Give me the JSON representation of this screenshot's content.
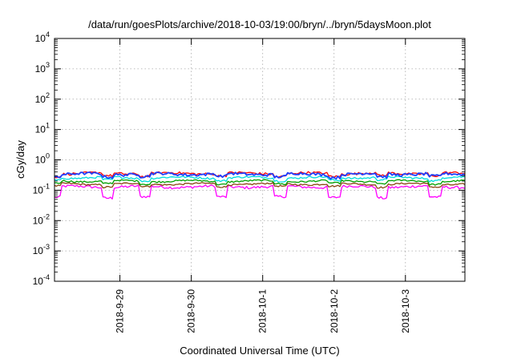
{
  "chart_data": {
    "type": "line",
    "title": "/data/run/goesPlots/archive/2018-10-03/19:00/bryn/../bryn/5daysMoon.plot",
    "xlabel": "Coordinated Universal Time (UTC)",
    "ylabel": "cGy/day",
    "yscale": "log",
    "ylim": [
      0.0001,
      10000
    ],
    "xlim": [
      "2018-09-28 02:00",
      "2018-10-03 20:00"
    ],
    "y_ticks": [
      {
        "base": "10",
        "exp": "-4"
      },
      {
        "base": "10",
        "exp": "-3"
      },
      {
        "base": "10",
        "exp": "-2"
      },
      {
        "base": "10",
        "exp": "-1"
      },
      {
        "base": "10",
        "exp": "0"
      },
      {
        "base": "10",
        "exp": "1"
      },
      {
        "base": "10",
        "exp": "2"
      },
      {
        "base": "10",
        "exp": "3"
      },
      {
        "base": "10",
        "exp": "4"
      }
    ],
    "x_ticks": [
      {
        "label": "2018-9-29",
        "at": "2018-09-29 00:00"
      },
      {
        "label": "2018-9-30",
        "at": "2018-09-30 00:00"
      },
      {
        "label": "2018-10-1",
        "at": "2018-10-01 00:00"
      },
      {
        "label": "2018-10-2",
        "at": "2018-10-02 00:00"
      },
      {
        "label": "2018-10-3",
        "at": "2018-10-03 00:00"
      }
    ],
    "grid": true,
    "legend": "none",
    "series": [
      {
        "color": "#ff00ff",
        "base": 0.13,
        "jitter": 0.1,
        "dips": true
      },
      {
        "color": "#8b4513",
        "base": 0.16,
        "jitter": 0.06,
        "dips": false
      },
      {
        "color": "#00a000",
        "base": 0.2,
        "jitter": 0.06,
        "dips": false
      },
      {
        "color": "#00dddd",
        "base": 0.26,
        "jitter": 0.07,
        "dips": false
      },
      {
        "color": "#ff0000",
        "base": 0.36,
        "jitter": 0.09,
        "dips": false
      },
      {
        "color": "#1f3fff",
        "base": 0.34,
        "jitter": 0.1,
        "dips": false
      }
    ],
    "dip_dates": [
      "2018-09-28 02:30",
      "2018-09-28 20:00",
      "2018-09-29 08:30",
      "2018-09-30 10:00",
      "2018-10-01 06:00",
      "2018-10-02 00:00",
      "2018-10-02 16:00",
      "2018-10-03 10:00"
    ]
  }
}
